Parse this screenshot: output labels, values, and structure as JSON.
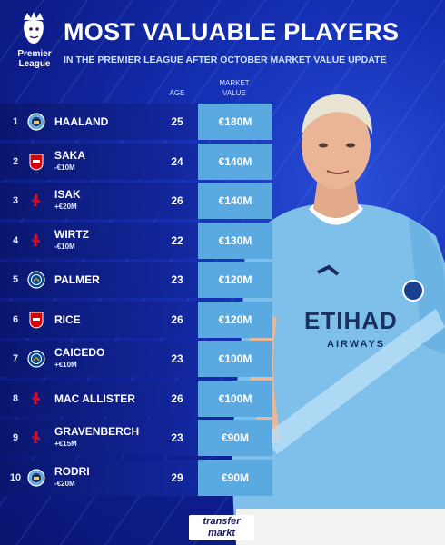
{
  "header": {
    "logo_text": [
      "Premier",
      "League"
    ],
    "title": "MOST VALUABLE PLAYERS",
    "subtitle": "IN THE PREMIER LEAGUE AFTER OCTOBER MARKET VALUE UPDATE",
    "col_age": "AGE",
    "col_value": [
      "MARKET",
      "VALUE"
    ]
  },
  "colors": {
    "background": "#0e1d8c",
    "value_cell": "#5aa9e0",
    "city_blue": "#6cabdd",
    "arsenal_red": "#db0007",
    "liverpool_red": "#c8102e",
    "chelsea_blue": "#034694"
  },
  "players": [
    {
      "rank": "1",
      "club": "man-city-crest",
      "name": "HAALAND",
      "change": "",
      "age": "25",
      "value": "€180M"
    },
    {
      "rank": "2",
      "club": "arsenal-crest",
      "name": "SAKA",
      "change": "-€10M",
      "age": "24",
      "value": "€140M"
    },
    {
      "rank": "3",
      "club": "liverpool-crest",
      "name": "ISAK",
      "change": "+€20M",
      "age": "26",
      "value": "€140M"
    },
    {
      "rank": "4",
      "club": "liverpool-crest",
      "name": "WIRTZ",
      "change": "-€10M",
      "age": "22",
      "value": "€130M"
    },
    {
      "rank": "5",
      "club": "chelsea-crest",
      "name": "PALMER",
      "change": "",
      "age": "23",
      "value": "€120M"
    },
    {
      "rank": "6",
      "club": "arsenal-crest",
      "name": "RICE",
      "change": "",
      "age": "26",
      "value": "€120M"
    },
    {
      "rank": "7",
      "club": "chelsea-crest",
      "name": "CAICEDO",
      "change": "+€10M",
      "age": "23",
      "value": "€100M"
    },
    {
      "rank": "8",
      "club": "liverpool-crest",
      "name": "MAC ALLISTER",
      "change": "",
      "age": "26",
      "value": "€100M"
    },
    {
      "rank": "9",
      "club": "liverpool-crest",
      "name": "GRAVENBERCH",
      "change": "+€15M",
      "age": "23",
      "value": "€90M"
    },
    {
      "rank": "10",
      "club": "man-city-crest",
      "name": "RODRI",
      "change": "-€20M",
      "age": "29",
      "value": "€90M"
    }
  ],
  "shirt": {
    "sponsor": "ETIHAD",
    "sponsor_sub": "AIRWAYS"
  },
  "footer": {
    "brand": [
      "transfer",
      "markt"
    ]
  }
}
